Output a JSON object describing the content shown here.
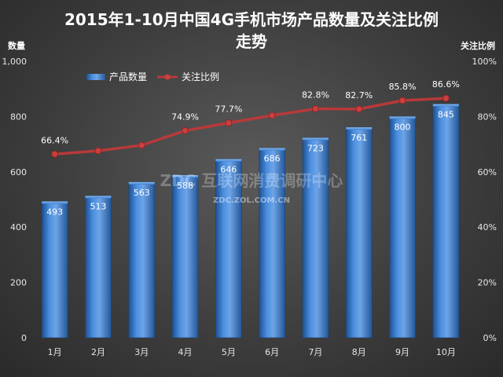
{
  "chart_data": {
    "type": "bar",
    "title_line1": "2015年1-10月中国4G手机市场产品数量及关注比例",
    "title_line2": "走势",
    "left_axis_label": "数量",
    "right_axis_label": "关注比例",
    "categories": [
      "1月",
      "2月",
      "3月",
      "4月",
      "5月",
      "6月",
      "7月",
      "8月",
      "9月",
      "10月"
    ],
    "series": [
      {
        "name": "产品数量",
        "type": "bar",
        "axis": "left",
        "values": [
          493,
          513,
          563,
          588,
          646,
          686,
          723,
          761,
          800,
          845
        ],
        "value_labels": [
          "493",
          "513",
          "563",
          "588",
          "646",
          "686",
          "723",
          "761",
          "800",
          "845"
        ]
      },
      {
        "name": "关注比例",
        "type": "line",
        "axis": "right",
        "values": [
          66.4,
          67.6,
          69.6,
          74.9,
          77.7,
          80.4,
          82.8,
          82.7,
          85.8,
          86.6
        ],
        "point_labels": [
          "66.4%",
          "",
          "",
          "74.9%",
          "77.7%",
          "",
          "82.8%",
          "82.7%",
          "85.8%",
          "86.6%"
        ]
      }
    ],
    "left_axis": {
      "min": 0,
      "max": 1000,
      "ticks": [
        "0",
        "200",
        "400",
        "600",
        "800",
        "1,000"
      ],
      "tick_values": [
        0,
        200,
        400,
        600,
        800,
        1000
      ]
    },
    "right_axis": {
      "min": 0,
      "max": 100,
      "ticks": [
        "0%",
        "20%",
        "40%",
        "60%",
        "80%",
        "100%"
      ],
      "tick_values": [
        0,
        20,
        40,
        60,
        80,
        100
      ]
    },
    "legend": {
      "position": "top-left",
      "entries": [
        "产品数量",
        "关注比例"
      ]
    },
    "grid": false,
    "colors": {
      "bar": "#3c7fd0",
      "bar_light": "#6ea4e6",
      "bar_dark": "#1f4f8f",
      "line": "#b8393a",
      "marker": "#c8403f"
    }
  },
  "watermark": {
    "line1": "ZDC 互联网消费调研中心",
    "line2": "ZDC.ZOL.COM.CN"
  }
}
